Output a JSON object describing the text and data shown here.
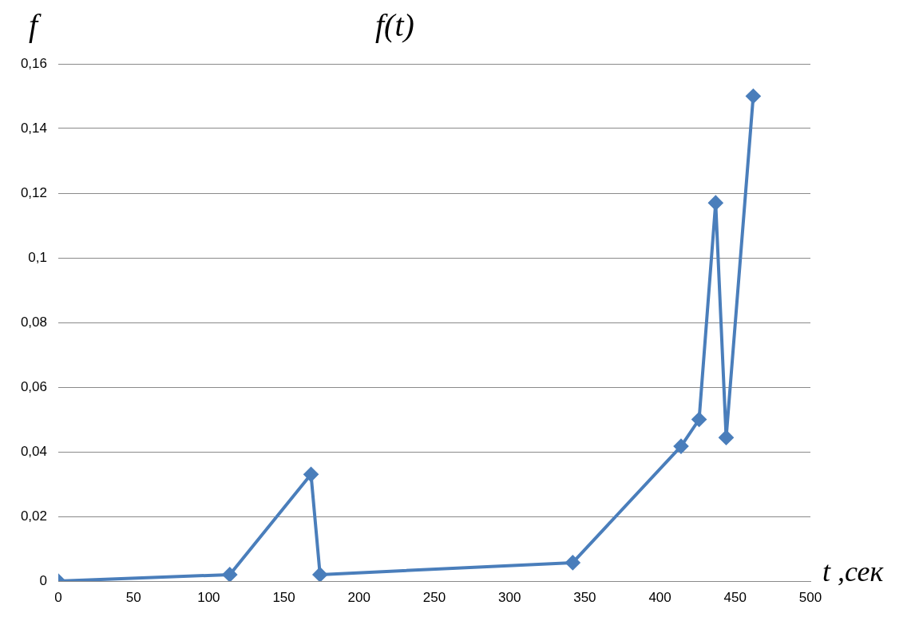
{
  "chart_data": {
    "type": "line",
    "title": "f(t)",
    "ylabel": "f",
    "xlabel": "t ,сек",
    "x": [
      0,
      114,
      168,
      174,
      342,
      414,
      426,
      437,
      444,
      462
    ],
    "series": [
      {
        "color": "#4a7ebb",
        "values": [
          0,
          0.002,
          0.033,
          0.002,
          0.0057,
          0.0417,
          0.05,
          0.117,
          0.0444,
          0.15
        ]
      }
    ],
    "xlim": [
      0,
      500
    ],
    "xticks": [
      0,
      50,
      100,
      150,
      200,
      250,
      300,
      350,
      400,
      450,
      500
    ],
    "ylim": [
      0,
      0.16
    ],
    "yticks": [
      {
        "value": 0,
        "label": "0"
      },
      {
        "value": 0.02,
        "label": "0,02"
      },
      {
        "value": 0.04,
        "label": "0,04"
      },
      {
        "value": 0.06,
        "label": "0,06"
      },
      {
        "value": 0.08,
        "label": "0,08"
      },
      {
        "value": 0.1,
        "label": "0,1"
      },
      {
        "value": 0.12,
        "label": "0,12"
      },
      {
        "value": 0.14,
        "label": "0,14"
      },
      {
        "value": 0.16,
        "label": "0,16"
      }
    ],
    "grid": "y",
    "legend": false,
    "marker": "diamond",
    "line_style": "solid"
  }
}
